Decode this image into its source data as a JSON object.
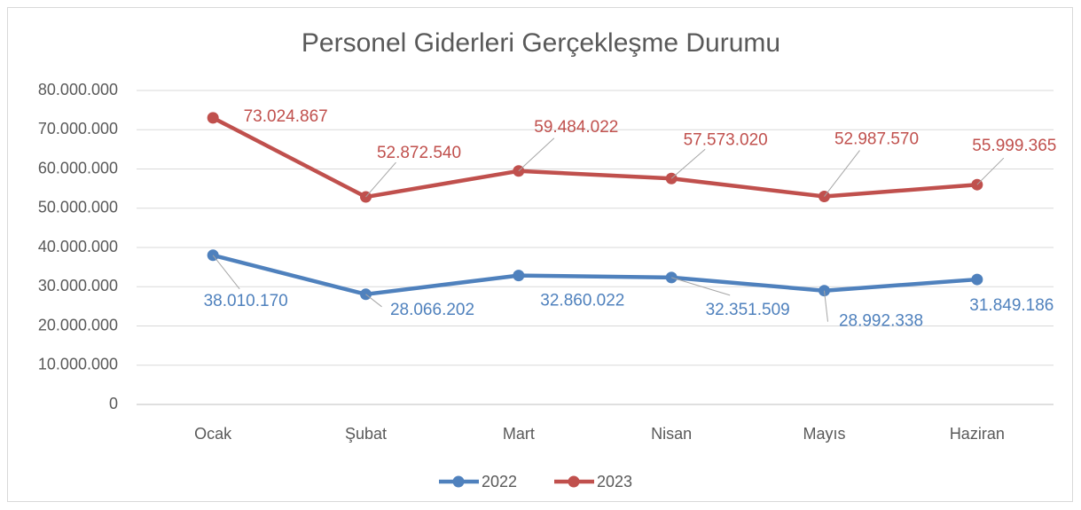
{
  "chart_data": {
    "type": "line",
    "title": "Personel Giderleri Gerçekleşme Durumu",
    "categories": [
      "Ocak",
      "Şubat",
      "Mart",
      "Nisan",
      "Mayıs",
      "Haziran"
    ],
    "series": [
      {
        "name": "2022",
        "color": "#4f81bd",
        "values": [
          38010170,
          28066202,
          32860022,
          32351509,
          28992338,
          31849186
        ],
        "value_labels": [
          "38.010.170",
          "28.066.202",
          "32.860.022",
          "32.351.509",
          "28.992.338",
          "31.849.186"
        ]
      },
      {
        "name": "2023",
        "color": "#c0504d",
        "values": [
          73024867,
          52872540,
          59484022,
          57573020,
          52987570,
          55999365
        ],
        "value_labels": [
          "73.024.867",
          "52.872.540",
          "59.484.022",
          "57.573.020",
          "52.987.570",
          "55.999.365"
        ]
      }
    ],
    "ylim": [
      0,
      80000000
    ],
    "yticks": [
      0,
      {
        "value": 10000000,
        "label": "10.000.000"
      },
      {
        "value": 20000000,
        "label": "20.000.000"
      },
      {
        "value": 30000000,
        "label": "30.000.000"
      },
      {
        "value": 40000000,
        "label": "40.000.000"
      },
      {
        "value": 50000000,
        "label": "50.000.000"
      },
      {
        "value": 60000000,
        "label": "60.000.000"
      },
      {
        "value": 70000000,
        "label": "70.000.000"
      },
      {
        "value": 80000000,
        "label": "80.000.000"
      }
    ],
    "grid": true,
    "legend": "bottom"
  }
}
